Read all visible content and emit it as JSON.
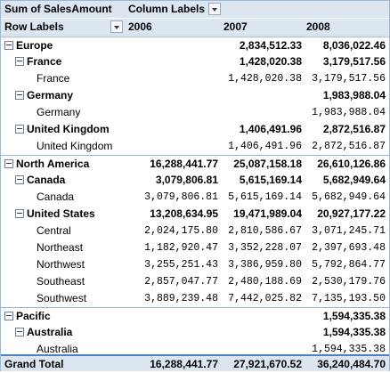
{
  "header": {
    "field": "Sum of SalesAmount",
    "column_labels": "Column Labels",
    "row_labels": "Row Labels",
    "years": [
      "2006",
      "2007",
      "2008"
    ]
  },
  "rows": [
    {
      "label": "Europe",
      "level": 0,
      "bold": true,
      "expander": true,
      "v2006": "",
      "v2007": "2,834,512.33",
      "v2008": "8,036,022.46"
    },
    {
      "label": "France",
      "level": 1,
      "bold": true,
      "expander": true,
      "v2006": "",
      "v2007": "1,428,020.38",
      "v2008": "3,179,517.56"
    },
    {
      "label": "France",
      "level": 2,
      "bold": false,
      "expander": false,
      "v2006": "",
      "v2007": "1,428,020.38",
      "v2008": "3,179,517.56"
    },
    {
      "label": "Germany",
      "level": 1,
      "bold": true,
      "expander": true,
      "v2006": "",
      "v2007": "",
      "v2008": "1,983,988.04"
    },
    {
      "label": "Germany",
      "level": 2,
      "bold": false,
      "expander": false,
      "v2006": "",
      "v2007": "",
      "v2008": "1,983,988.04"
    },
    {
      "label": "United Kingdom",
      "level": 1,
      "bold": true,
      "expander": true,
      "v2006": "",
      "v2007": "1,406,491.96",
      "v2008": "2,872,516.87"
    },
    {
      "label": "United Kingdom",
      "level": 2,
      "bold": false,
      "expander": false,
      "v2006": "",
      "v2007": "1,406,491.96",
      "v2008": "2,872,516.87"
    },
    {
      "label": "North America",
      "level": 0,
      "bold": true,
      "expander": true,
      "v2006": "16,288,441.77",
      "v2007": "25,087,158.18",
      "v2008": "26,610,126.86"
    },
    {
      "label": "Canada",
      "level": 1,
      "bold": true,
      "expander": true,
      "v2006": "3,079,806.81",
      "v2007": "5,615,169.14",
      "v2008": "5,682,949.64"
    },
    {
      "label": "Canada",
      "level": 2,
      "bold": false,
      "expander": false,
      "v2006": "3,079,806.81",
      "v2007": "5,615,169.14",
      "v2008": "5,682,949.64"
    },
    {
      "label": "United States",
      "level": 1,
      "bold": true,
      "expander": true,
      "v2006": "13,208,634.95",
      "v2007": "19,471,989.04",
      "v2008": "20,927,177.22"
    },
    {
      "label": "Central",
      "level": 2,
      "bold": false,
      "expander": false,
      "v2006": "2,024,175.80",
      "v2007": "2,810,586.67",
      "v2008": "3,071,245.71"
    },
    {
      "label": "Northeast",
      "level": 2,
      "bold": false,
      "expander": false,
      "v2006": "1,182,920.47",
      "v2007": "3,352,228.07",
      "v2008": "2,397,693.48"
    },
    {
      "label": "Northwest",
      "level": 2,
      "bold": false,
      "expander": false,
      "v2006": "3,255,251.43",
      "v2007": "3,386,959.80",
      "v2008": "5,792,864.77"
    },
    {
      "label": "Southeast",
      "level": 2,
      "bold": false,
      "expander": false,
      "v2006": "2,857,047.77",
      "v2007": "2,480,188.69",
      "v2008": "2,530,179.76"
    },
    {
      "label": "Southwest",
      "level": 2,
      "bold": false,
      "expander": false,
      "v2006": "3,889,239.48",
      "v2007": "7,442,025.82",
      "v2008": "7,135,193.50"
    },
    {
      "label": "Pacific",
      "level": 0,
      "bold": true,
      "expander": true,
      "v2006": "",
      "v2007": "",
      "v2008": "1,594,335.38"
    },
    {
      "label": "Australia",
      "level": 1,
      "bold": true,
      "expander": true,
      "v2006": "",
      "v2007": "",
      "v2008": "1,594,335.38"
    },
    {
      "label": "Australia",
      "level": 2,
      "bold": false,
      "expander": false,
      "v2006": "",
      "v2007": "",
      "v2008": "1,594,335.38"
    }
  ],
  "grand_total": {
    "label": "Grand Total",
    "v2006": "16,288,441.77",
    "v2007": "27,921,670.52",
    "v2008": "36,240,484.70"
  }
}
